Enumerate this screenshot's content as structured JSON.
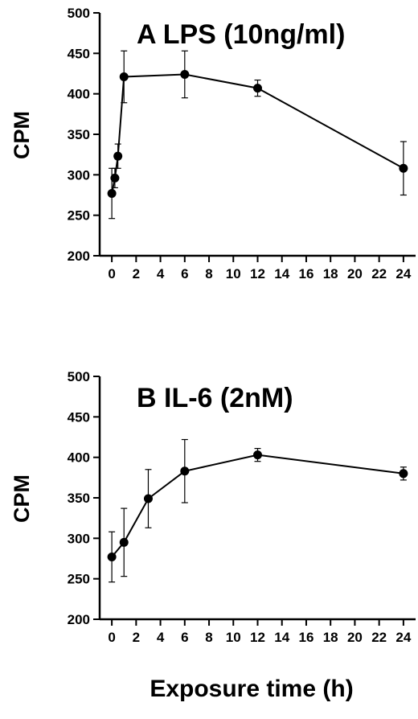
{
  "figure": {
    "xlabel": "Exposure time (h)"
  },
  "chart_data": [
    {
      "type": "line",
      "title": "A  LPS (10ng/ml)",
      "xlabel": "Exposure time (h)",
      "ylabel": "CPM",
      "xlim": [
        -1,
        25
      ],
      "ylim": [
        200,
        500
      ],
      "xticks": [
        0,
        2,
        4,
        6,
        8,
        10,
        12,
        14,
        16,
        18,
        20,
        22,
        24
      ],
      "yticks": [
        200,
        250,
        300,
        350,
        400,
        450,
        500
      ],
      "grid": false,
      "series": [
        {
          "x": [
            0,
            0.25,
            0.5,
            1,
            6,
            12,
            24
          ],
          "y": [
            277,
            296,
            323,
            421,
            424,
            407,
            308
          ],
          "error": [
            31,
            12,
            15,
            32,
            29,
            10,
            33
          ]
        }
      ]
    },
    {
      "type": "line",
      "title": "B  IL-6 (2nM)",
      "xlabel": "Exposure time (h)",
      "ylabel": "CPM",
      "xlim": [
        -1,
        25
      ],
      "ylim": [
        200,
        500
      ],
      "xticks": [
        0,
        2,
        4,
        6,
        8,
        10,
        12,
        14,
        16,
        18,
        20,
        22,
        24
      ],
      "yticks": [
        200,
        250,
        300,
        350,
        400,
        450,
        500
      ],
      "grid": false,
      "series": [
        {
          "x": [
            0,
            1,
            3,
            6,
            12,
            24
          ],
          "y": [
            277,
            295,
            349,
            383,
            403,
            380
          ],
          "error": [
            31,
            42,
            36,
            39,
            8,
            8
          ]
        }
      ]
    }
  ]
}
